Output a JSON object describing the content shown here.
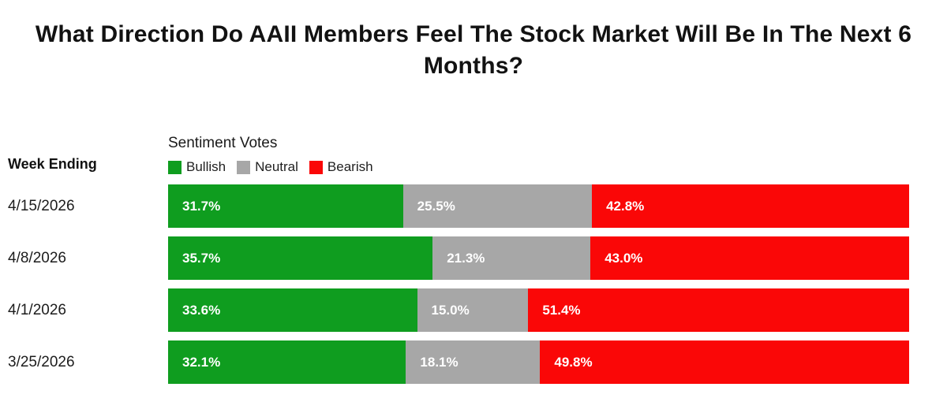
{
  "title": "What Direction Do AAII Members Feel The Stock Market Will Be In The Next 6 Months?",
  "left_header": "Week Ending",
  "legend_title": "Sentiment Votes",
  "chart_data": {
    "type": "bar",
    "orientation": "horizontal-stacked",
    "title": "Sentiment Votes",
    "xlabel": "",
    "ylabel": "Week Ending",
    "xlim": [
      0,
      100
    ],
    "value_format": "percent",
    "grid": false,
    "legend_position": "top-left",
    "categories": [
      "4/15/2026",
      "4/8/2026",
      "4/1/2026",
      "3/25/2026"
    ],
    "series": [
      {
        "name": "Bullish",
        "color": "#0f9d1f",
        "values": [
          31.7,
          35.7,
          33.6,
          32.1
        ]
      },
      {
        "name": "Neutral",
        "color": "#a7a7a7",
        "values": [
          25.5,
          21.3,
          15.0,
          18.1
        ]
      },
      {
        "name": "Bearish",
        "color": "#fa0707",
        "values": [
          42.8,
          43.0,
          51.4,
          49.8
        ]
      }
    ]
  }
}
